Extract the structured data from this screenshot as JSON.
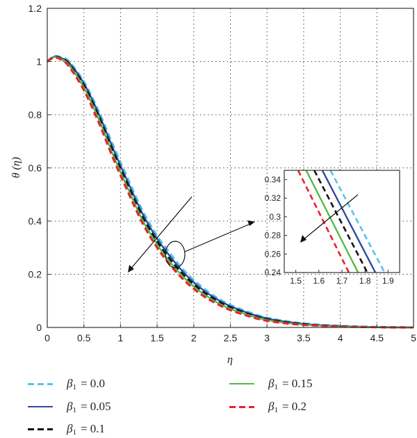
{
  "chart_data": {
    "type": "line",
    "title": "",
    "xlabel": "η",
    "ylabel": "θ (η)",
    "xlim": [
      0,
      5
    ],
    "ylim": [
      0,
      1.2
    ],
    "xticks": [
      "0",
      "0.5",
      "1",
      "1.5",
      "2",
      "2.5",
      "3",
      "3.5",
      "4",
      "4.5",
      "5"
    ],
    "yticks": [
      "0",
      "0.2",
      "0.4",
      "0.6",
      "0.8",
      "1",
      "1.2"
    ],
    "grid": true,
    "legend_position": "bottom",
    "series": [
      {
        "label_symbol": "β",
        "label_sub": "1",
        "label_rest": " = 0.0",
        "color": "#56c3e8",
        "dash": "dashed",
        "x": [
          0,
          0.1,
          0.2,
          0.3,
          0.5,
          0.7,
          0.9,
          1.1,
          1.3,
          1.5,
          1.7,
          1.9,
          2.1,
          2.3,
          2.5,
          2.8,
          3.0,
          3.3,
          3.6,
          4.0,
          4.5,
          5.0
        ],
        "y": [
          1.0,
          1.02,
          1.015,
          1.0,
          0.925,
          0.815,
          0.685,
          0.56,
          0.44,
          0.345,
          0.27,
          0.205,
          0.155,
          0.115,
          0.085,
          0.053,
          0.037,
          0.022,
          0.013,
          0.006,
          0.002,
          0.0
        ]
      },
      {
        "label_symbol": "β",
        "label_sub": "1",
        "label_rest": " = 0.05",
        "color": "#2e4a9e",
        "dash": "solid",
        "x": [
          0,
          0.1,
          0.2,
          0.3,
          0.5,
          0.7,
          0.9,
          1.1,
          1.3,
          1.5,
          1.7,
          1.9,
          2.1,
          2.3,
          2.5,
          2.8,
          3.0,
          3.3,
          3.6,
          4.0,
          4.5,
          5.0
        ],
        "y": [
          1.0,
          1.019,
          1.012,
          0.995,
          0.918,
          0.805,
          0.672,
          0.547,
          0.428,
          0.334,
          0.259,
          0.196,
          0.147,
          0.109,
          0.08,
          0.049,
          0.034,
          0.02,
          0.011,
          0.005,
          0.001,
          0.0
        ]
      },
      {
        "label_symbol": "β",
        "label_sub": "1",
        "label_rest": " = 0.1",
        "color": "#111111",
        "dash": "dashed",
        "x": [
          0,
          0.1,
          0.2,
          0.3,
          0.5,
          0.7,
          0.9,
          1.1,
          1.3,
          1.5,
          1.7,
          1.9,
          2.1,
          2.3,
          2.5,
          2.8,
          3.0,
          3.3,
          3.6,
          4.0,
          4.5,
          5.0
        ],
        "y": [
          1.0,
          1.018,
          1.01,
          0.99,
          0.91,
          0.795,
          0.66,
          0.535,
          0.416,
          0.323,
          0.248,
          0.187,
          0.139,
          0.103,
          0.075,
          0.045,
          0.031,
          0.018,
          0.01,
          0.004,
          0.001,
          0.0
        ]
      },
      {
        "label_symbol": "β",
        "label_sub": "1",
        "label_rest": " = 0.15",
        "color": "#55b947",
        "dash": "solid",
        "x": [
          0,
          0.1,
          0.2,
          0.3,
          0.5,
          0.7,
          0.9,
          1.1,
          1.3,
          1.5,
          1.7,
          1.9,
          2.1,
          2.3,
          2.5,
          2.8,
          3.0,
          3.3,
          3.6,
          4.0,
          4.5,
          5.0
        ],
        "y": [
          1.0,
          1.017,
          1.008,
          0.986,
          0.902,
          0.785,
          0.648,
          0.523,
          0.404,
          0.312,
          0.238,
          0.178,
          0.132,
          0.097,
          0.07,
          0.042,
          0.028,
          0.016,
          0.009,
          0.003,
          0.001,
          0.0
        ]
      },
      {
        "label_symbol": "β",
        "label_sub": "1",
        "label_rest": " = 0.2",
        "color": "#e8212b",
        "dash": "dashed",
        "x": [
          0,
          0.1,
          0.2,
          0.3,
          0.5,
          0.7,
          0.9,
          1.1,
          1.3,
          1.5,
          1.7,
          1.9,
          2.1,
          2.3,
          2.5,
          2.8,
          3.0,
          3.3,
          3.6,
          4.0,
          4.5,
          5.0
        ],
        "y": [
          1.0,
          1.015,
          1.005,
          0.98,
          0.892,
          0.772,
          0.635,
          0.51,
          0.392,
          0.3,
          0.227,
          0.169,
          0.124,
          0.091,
          0.065,
          0.038,
          0.025,
          0.014,
          0.008,
          0.003,
          0.001,
          0.0
        ]
      }
    ],
    "inset": {
      "xlim": [
        1.45,
        1.95
      ],
      "ylim": [
        0.24,
        0.35
      ],
      "xticks": [
        "1.5",
        "1.6",
        "1.7",
        "1.8",
        "1.9"
      ],
      "yticks": [
        "0.24",
        "0.26",
        "0.28",
        "0.3",
        "0.32",
        "0.34"
      ],
      "lines": [
        {
          "x1": 1.65,
          "y1": 0.35,
          "x2": 1.885,
          "y2": 0.24
        },
        {
          "x1": 1.615,
          "y1": 0.35,
          "x2": 1.845,
          "y2": 0.24
        },
        {
          "x1": 1.58,
          "y1": 0.35,
          "x2": 1.81,
          "y2": 0.24
        },
        {
          "x1": 1.545,
          "y1": 0.35,
          "x2": 1.77,
          "y2": 0.24
        },
        {
          "x1": 1.51,
          "y1": 0.35,
          "x2": 1.73,
          "y2": 0.24
        }
      ]
    }
  }
}
